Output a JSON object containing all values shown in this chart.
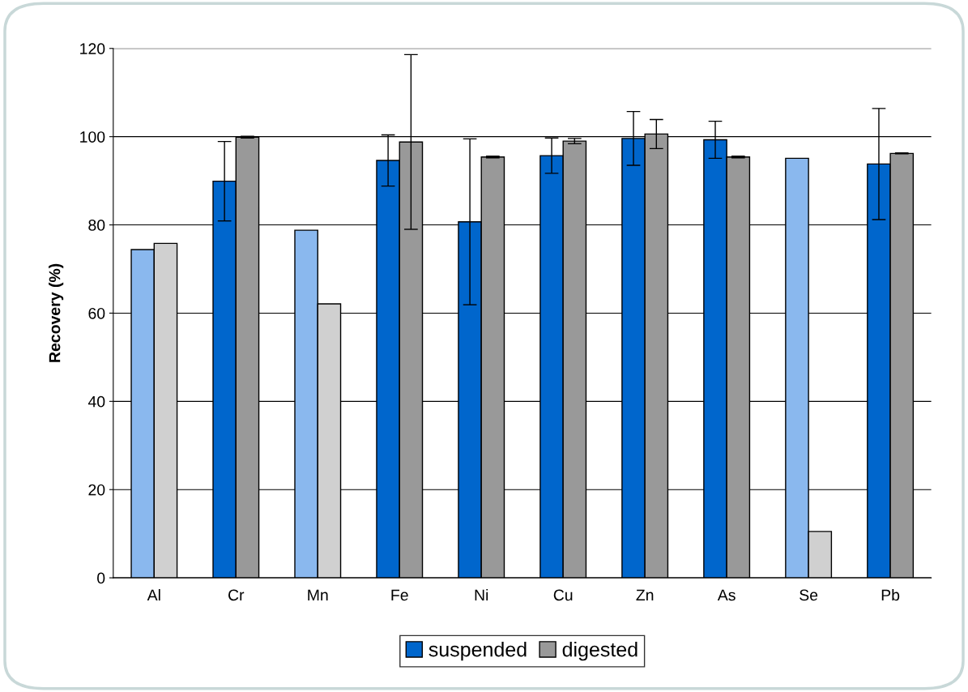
{
  "chart_data": {
    "type": "bar",
    "ylabel": "Recovery (%)",
    "categories": [
      "Al",
      "Cr",
      "Mn",
      "Fe",
      "Ni",
      "Cu",
      "Zn",
      "As",
      "Se",
      "Pb"
    ],
    "series": [
      {
        "name": "suspended",
        "color": "#0066cc",
        "colors": [
          "#8ab8ee",
          "#0066cc",
          "#8ab8ee",
          "#0066cc",
          "#0066cc",
          "#0066cc",
          "#0066cc",
          "#0066cc",
          "#8ab8ee",
          "#0066cc"
        ],
        "values": [
          74.4,
          89.9,
          78.8,
          94.6,
          80.7,
          95.7,
          99.6,
          99.3,
          95.1,
          93.8
        ],
        "errors": [
          null,
          9,
          null,
          5.8,
          18.8,
          4,
          6.1,
          4.2,
          null,
          12.6
        ]
      },
      {
        "name": "digested",
        "color": "#999999",
        "colors": [
          "#d0d0d0",
          "#999999",
          "#d0d0d0",
          "#999999",
          "#999999",
          "#999999",
          "#999999",
          "#999999",
          "#d0d0d0",
          "#999999"
        ],
        "values": [
          75.8,
          99.9,
          62.1,
          98.8,
          95.4,
          99.0,
          100.6,
          95.4,
          10.5,
          96.2
        ],
        "errors": [
          null,
          0.2,
          null,
          19.8,
          0.2,
          0.6,
          3.3,
          0.2,
          null,
          0.1
        ]
      }
    ],
    "ylim": [
      0,
      120
    ],
    "yticks": [
      0,
      20,
      40,
      60,
      80,
      100,
      120
    ],
    "grid": "y",
    "legend": "bottom"
  }
}
